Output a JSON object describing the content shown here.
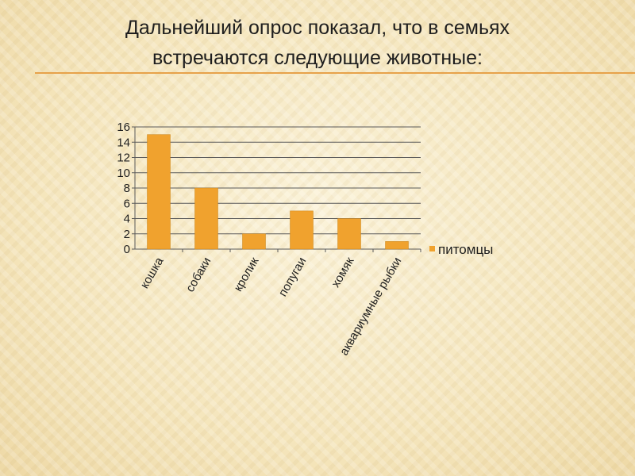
{
  "slide": {
    "title_line1": "Дальнейший опрос показал, что в семьях",
    "title_line2": "встречаются следующие животные:",
    "accent_color": "#e7a24a"
  },
  "chart_data": {
    "type": "bar",
    "categories": [
      "кошка",
      "собаки",
      "кролик",
      "попугаи",
      "хомяк",
      "аквариумные рыбки"
    ],
    "series": [
      {
        "name": "питомцы",
        "values": [
          15,
          8,
          2,
          5,
          4,
          1
        ],
        "color": "#f0a22e"
      }
    ],
    "title": "",
    "xlabel": "",
    "ylabel": "",
    "ylim": [
      0,
      16
    ],
    "yticks": [
      0,
      2,
      4,
      6,
      8,
      10,
      12,
      14,
      16
    ],
    "grid": true,
    "legend": "right"
  }
}
